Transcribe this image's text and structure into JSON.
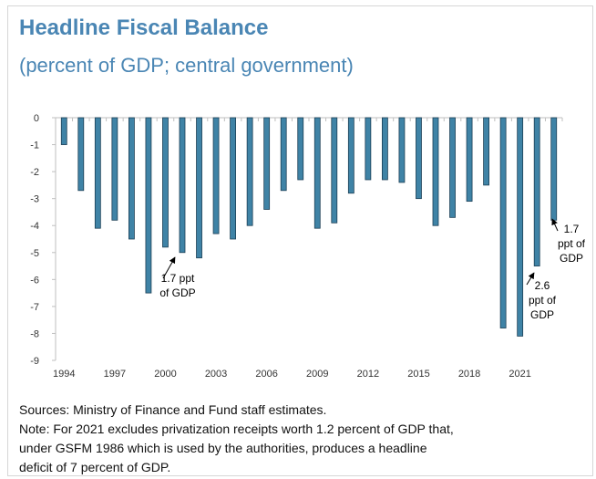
{
  "header": {
    "title": "Headline Fiscal Balance",
    "subtitle": "(percent of GDP; central government)"
  },
  "chart_data": {
    "type": "bar",
    "categories": [
      "1994",
      "1995",
      "1996",
      "1997",
      "1998",
      "1999",
      "2000",
      "2001",
      "2002",
      "2003",
      "2004",
      "2005",
      "2006",
      "2007",
      "2008",
      "2009",
      "2010",
      "2011",
      "2012",
      "2013",
      "2014",
      "2015",
      "2016",
      "2017",
      "2018",
      "2019",
      "2020",
      "2021",
      "2022",
      "2023"
    ],
    "values": [
      -1.0,
      -2.7,
      -4.1,
      -3.8,
      -4.5,
      -6.5,
      -4.8,
      -5.0,
      -5.2,
      -4.3,
      -4.5,
      -4.0,
      -3.4,
      -2.7,
      -2.3,
      -4.1,
      -3.9,
      -2.8,
      -2.3,
      -2.3,
      -2.4,
      -3.0,
      -4.0,
      -3.7,
      -3.1,
      -2.5,
      -7.8,
      -8.1,
      -5.5,
      -3.8
    ],
    "x_tick_labels": [
      "1994",
      "1997",
      "2000",
      "2003",
      "2006",
      "2009",
      "2012",
      "2015",
      "2018",
      "2021"
    ],
    "y_tick_labels": [
      "0",
      "-1",
      "-2",
      "-3",
      "-4",
      "-5",
      "-6",
      "-7",
      "-8",
      "-9"
    ],
    "ylim": [
      -9,
      0
    ],
    "bar_color": "#3f83a6",
    "annotations": [
      {
        "lines": [
          "1.7 ppt",
          "of GDP"
        ],
        "arrow_to_category": "2000"
      },
      {
        "lines": [
          "2.6",
          "ppt of",
          "GDP"
        ],
        "arrow_to_category": "2022"
      },
      {
        "lines": [
          "1.7",
          "ppt of",
          "GDP"
        ],
        "arrow_to_category": "2023"
      }
    ]
  },
  "footer": {
    "sources": "Sources: Ministry of Finance and Fund staff estimates.",
    "note_lines": [
      "Note: For 2021 excludes privatization receipts worth 1.2 percent of GDP that,",
      "under GSFM 1986 which is used by the authorities, produces a headline",
      "deficit of 7 percent of GDP."
    ]
  }
}
